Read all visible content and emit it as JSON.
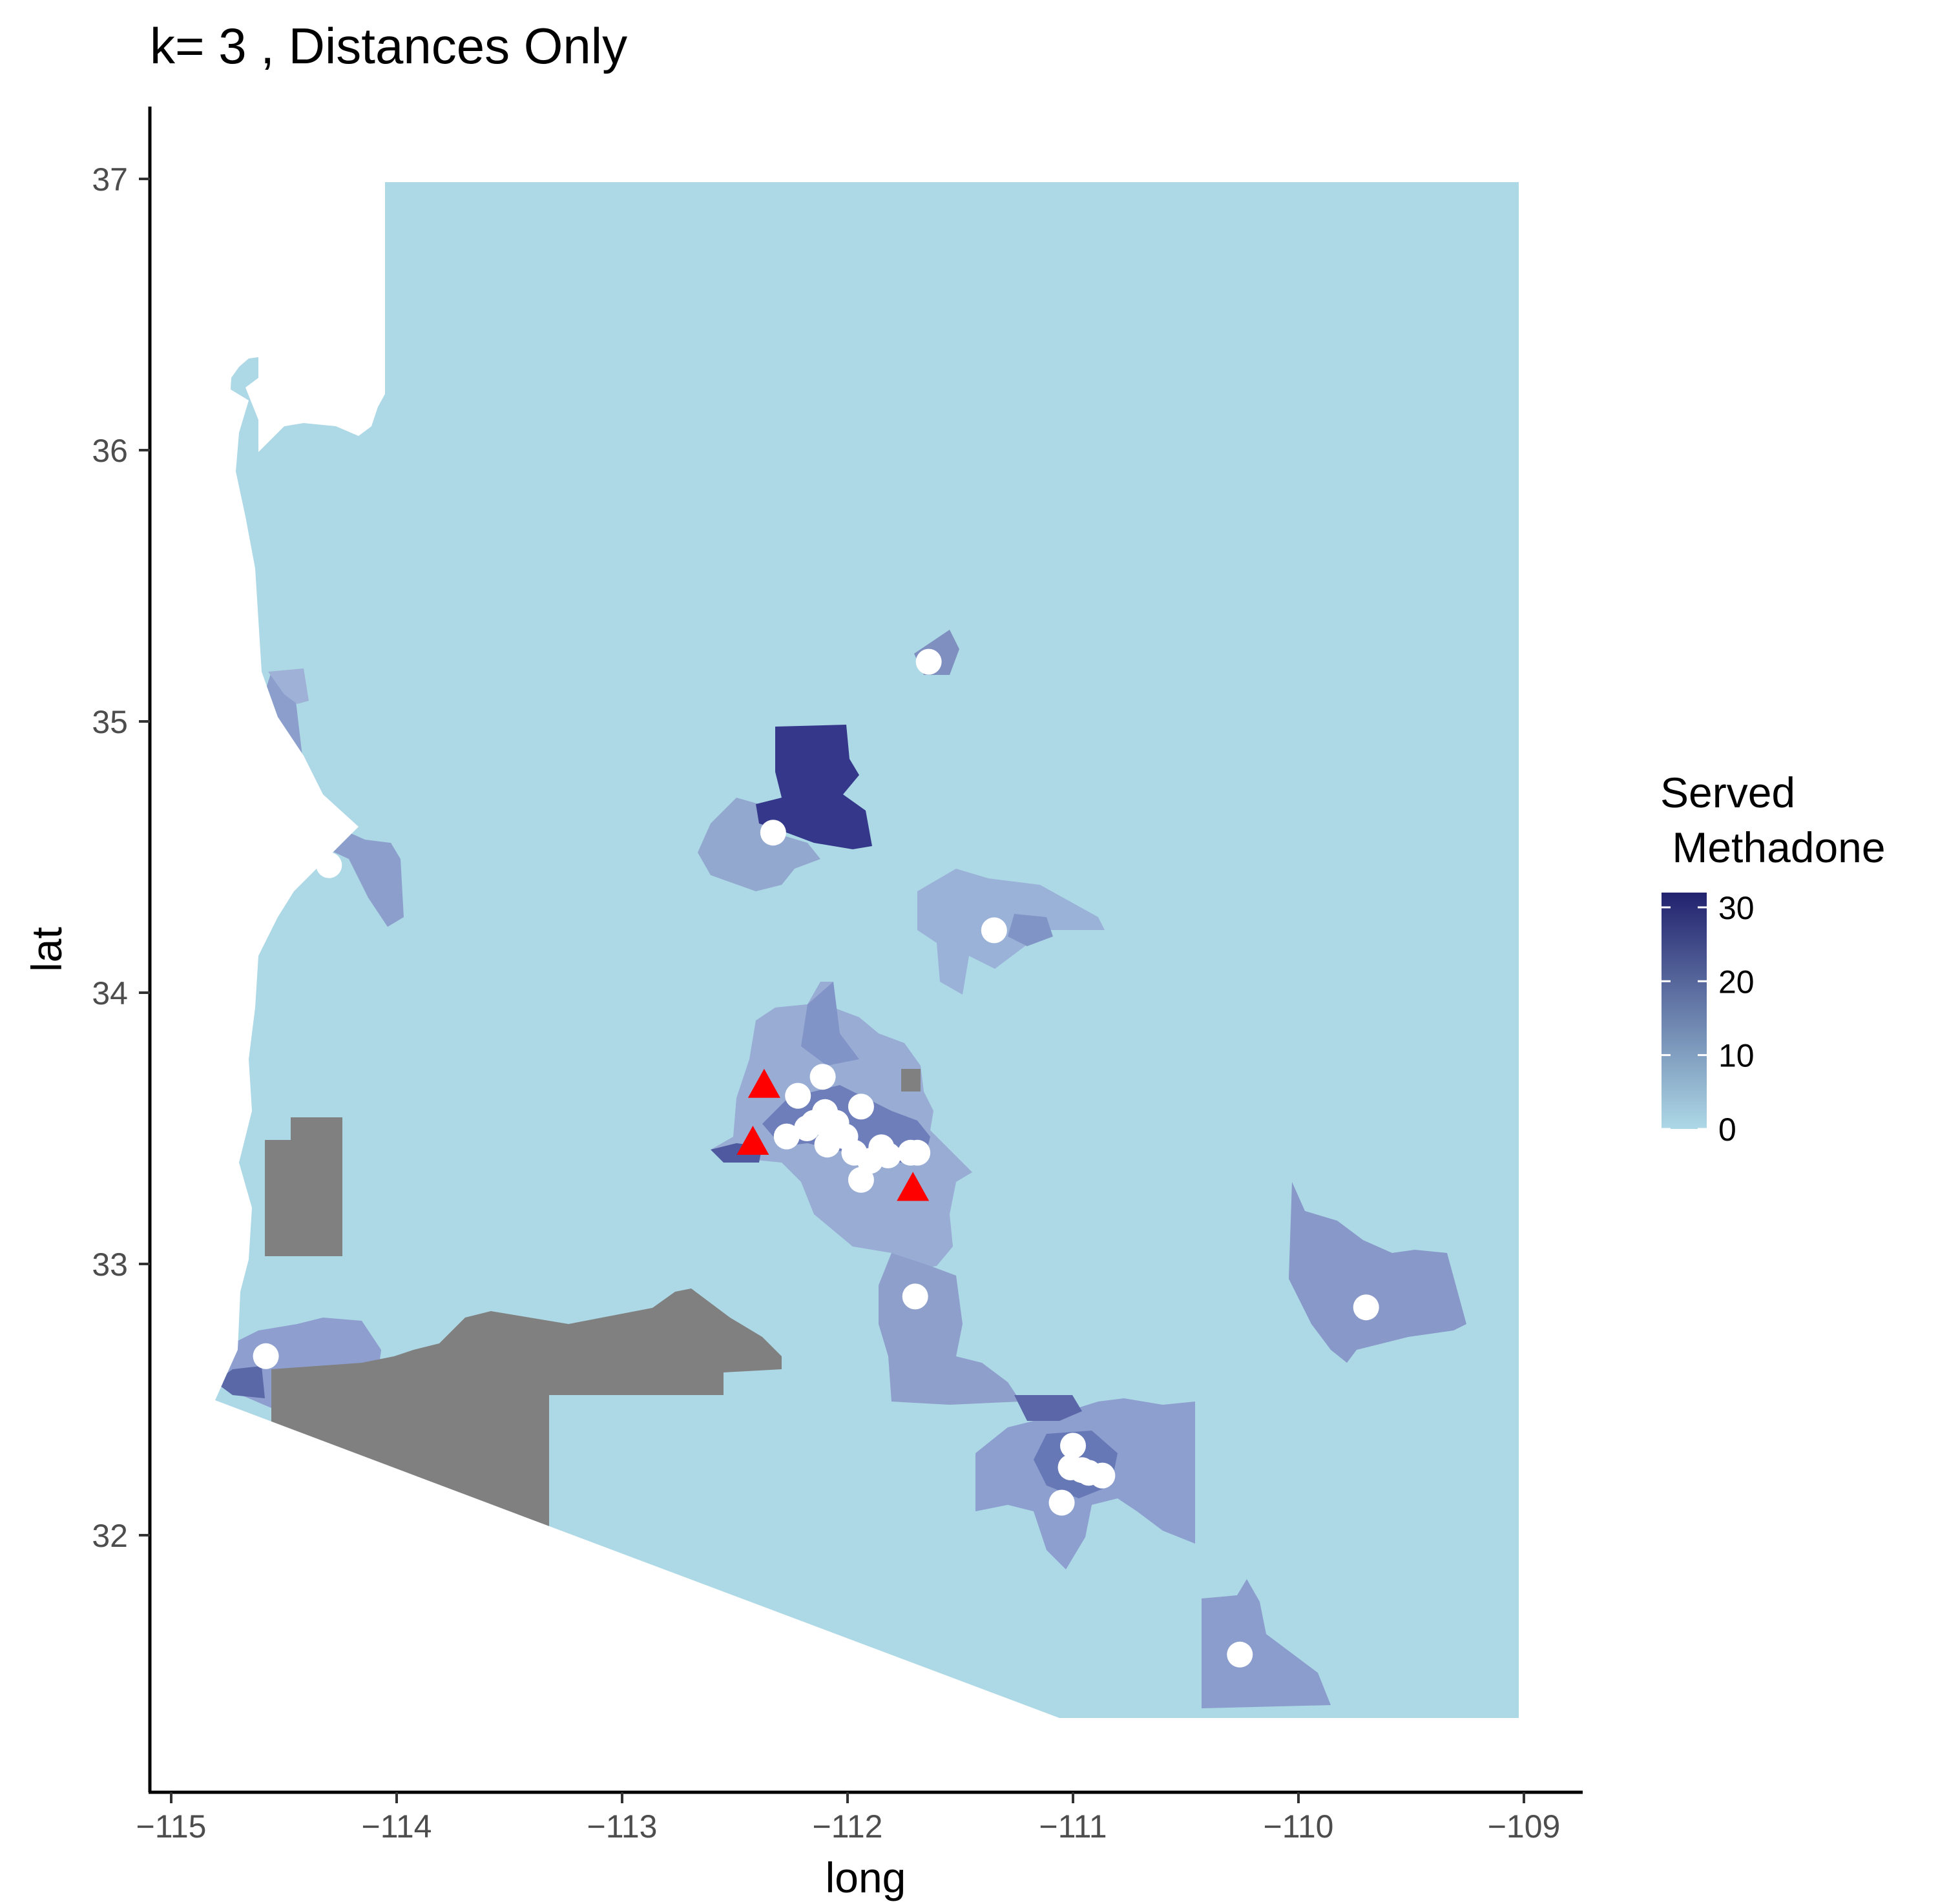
{
  "title": "k= 3 , Distances Only",
  "axes": {
    "xlabel": "long",
    "ylabel": "lat",
    "x_ticks": [
      "-115",
      "-114",
      "-113",
      "-112",
      "-111",
      "-110",
      "-109"
    ],
    "y_ticks": [
      "32",
      "33",
      "34",
      "35",
      "36",
      "37"
    ],
    "xlim": [
      -115.1,
      -108.8
    ],
    "ylim": [
      31.1,
      37.3
    ]
  },
  "legend": {
    "title_line1": "Served",
    "title_line2": " Methadone",
    "ticks": [
      "0",
      "10",
      "20",
      "30"
    ],
    "range": [
      0,
      32
    ],
    "colors": {
      "low": "#add8e6",
      "high": "#22226e"
    },
    "placement": "right"
  },
  "colors": {
    "base": "#add8e6",
    "missing": "#808080",
    "facility": "#ffffff",
    "triangle": "#ff0000"
  },
  "chart_data": {
    "type": "map",
    "region": "Arizona census tracts",
    "fill_variable": "Served Methadone",
    "facilities_circles": [
      [
        -114.58,
        32.66
      ],
      [
        -114.3,
        34.47
      ],
      [
        -111.64,
        35.22
      ],
      [
        -112.33,
        34.59
      ],
      [
        -111.35,
        34.23
      ],
      [
        -112.22,
        33.62
      ],
      [
        -112.11,
        33.69
      ],
      [
        -111.94,
        33.58
      ],
      [
        -112.1,
        33.56
      ],
      [
        -112.05,
        33.52
      ],
      [
        -112.15,
        33.52
      ],
      [
        -112.18,
        33.5
      ],
      [
        -112.07,
        33.48
      ],
      [
        -112.01,
        33.47
      ],
      [
        -112.27,
        33.47
      ],
      [
        -112.09,
        33.44
      ],
      [
        -111.97,
        33.41
      ],
      [
        -111.85,
        33.43
      ],
      [
        -111.82,
        33.4
      ],
      [
        -111.9,
        33.38
      ],
      [
        -111.72,
        33.41
      ],
      [
        -111.69,
        33.41
      ],
      [
        -111.94,
        33.31
      ],
      [
        -111.7,
        32.88
      ],
      [
        -111.0,
        32.33
      ],
      [
        -111.01,
        32.25
      ],
      [
        -110.96,
        32.24
      ],
      [
        -110.93,
        32.23
      ],
      [
        -110.87,
        32.22
      ],
      [
        -111.05,
        32.12
      ],
      [
        -110.26,
        31.56
      ],
      [
        -109.7,
        32.84
      ]
    ],
    "facilities_triangles": [
      [
        -112.37,
        33.66
      ],
      [
        -112.42,
        33.45
      ],
      [
        -111.71,
        33.28
      ]
    ]
  }
}
